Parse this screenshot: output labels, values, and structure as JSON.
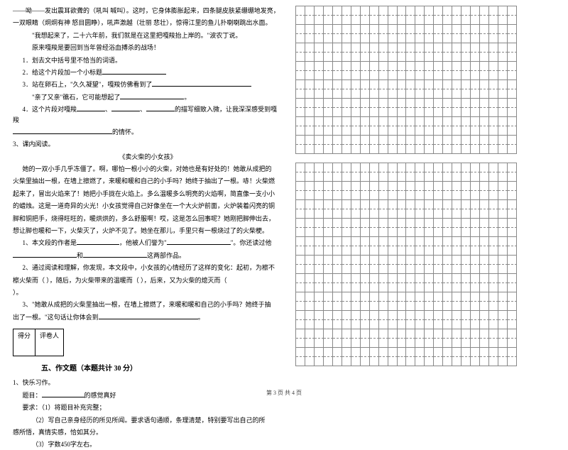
{
  "passage1": {
    "l1": "——呦——发出震耳欲聋的（吼叫  喊叫）。这时，它身体膨胀起来，四条腿皮肤紧绷绷地发亮，",
    "l2": "一双眼睛（炯炯有神  怒目圆睁），吼声激越（壮丽  悲壮），惊得江里的鱼儿扑喇喇跳出水面。",
    "l3": "\"我想起来了，二十六年前，我们就是在这里把嘎羧抬上岸的。\"波农丁说。",
    "l4": "原来嘎羧是要回到当年曾经浴血搏杀的战场！",
    "q1": "1．划去文中括号里不恰当的词语。",
    "q2": "2．给这个片段加一个小标题",
    "q3a": "3．站在卵石上，\"久久凝望\"，嘎羧仿佛看到了",
    "q3b": "\"亲了又亲\"礁石，它可能想起了",
    "q4a": "4．这个片段对嘎羧",
    "q4b": "的描写细致入微，让我深深感受到嘎羧",
    "q4c": "的情怀。"
  },
  "section3": {
    "title": "3、课内阅读。",
    "subtitle": "《卖火柴的小女孩》",
    "p1": "她的一双小手几乎冻僵了。啊，哪怕一根小小的火柴，对她也是有好处的！她敢从成把的",
    "p2": "火柴里抽出一根，在墙上擦燃了，来暖和暖和自己的小手吗？她终于抽出了一根。哧！火柴燃",
    "p3": "起来了，冒出火焰来了！她把小手拢在火焰上。多么温暖多么明亮的火焰啊，简直像一支小小",
    "p4": "的蜡烛。这是一道奇异的火光！小女孩觉得自己好像坐在一个大火炉前面，火炉装着闪亮的铜",
    "p5": "脚和铜把手，烧得旺旺的，暖烘烘的，多么舒服啊！哎，这是怎么回事呢？她刚把脚伸出去，",
    "p6": "想让脚也暖和一下，火柴灭了，火炉不见了。她坐在那儿，手里只有一根烧过了的火柴梗。",
    "q1a": "1、本文段的作者是",
    "q1b": "，他被人们誉为\"",
    "q1c": "\"。你还读过他",
    "q1d": "和",
    "q1e": "这两部作品。",
    "q2a": "2、通过阅读和理解，你发现，本文段中，小女孩的心情经历了这样的变化：起初，为檫不",
    "q2b": "檫火柴而（        ），随后，为火柴带来的温暖而（        ），后来，又为火柴的熄灭而（      ",
    "q2c": "    ）。",
    "q3a": "3、\"她敢从成把的火柴里抽出一根，在墙上擦燃了，来暖和暖和自己的小手吗？她终于抽",
    "q3b": "出了一根。\"这句话让你体会到",
    "q3c": "。"
  },
  "score": {
    "c1": "得分",
    "c2": "评卷人"
  },
  "section5": {
    "title": "五、作文题（本题共计 30 分）",
    "l1": "1、快乐习作。",
    "l2": "题目：",
    "l2b": "的感觉真好",
    "l3": "要求：（1）将题目补充完整；",
    "l4": "（2）写自己亲身经历的所见所闻。要求语句通顺，条理清楚，特别要写出自己的所",
    "l5": "感所悟，真情实感，恰如其分。",
    "l6": "（3）字数450字左右。"
  },
  "footer": "第 3 页 共 4 页"
}
